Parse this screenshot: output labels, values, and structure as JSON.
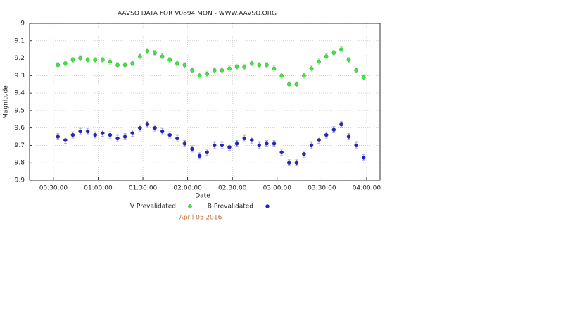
{
  "chart_data": {
    "type": "scatter",
    "title": "AAVSO DATA FOR V0894 MON - WWW.AAVSO.ORG",
    "subtitle": "April 05 2016",
    "x_label": "Date",
    "y_label": "Magnitude",
    "x": [
      33,
      38,
      43,
      48,
      53,
      58,
      63,
      68,
      73,
      78,
      83,
      88,
      93,
      98,
      103,
      108,
      113,
      118,
      123,
      128,
      133,
      138,
      143,
      148,
      153,
      158,
      163,
      168,
      173,
      178,
      183,
      188,
      193,
      198,
      203,
      208,
      213,
      218,
      223,
      228,
      233,
      238
    ],
    "series": [
      {
        "name": "V Prevalidated",
        "color": "#33ee33",
        "error": 0.015,
        "values": [
          9.24,
          9.23,
          9.21,
          9.2,
          9.21,
          9.21,
          9.21,
          9.22,
          9.24,
          9.24,
          9.23,
          9.19,
          9.16,
          9.17,
          9.19,
          9.21,
          9.23,
          9.24,
          9.27,
          9.3,
          9.29,
          9.27,
          9.27,
          9.26,
          9.25,
          9.25,
          9.23,
          9.24,
          9.24,
          9.26,
          9.3,
          9.35,
          9.35,
          9.3,
          9.26,
          9.22,
          9.19,
          9.17,
          9.15,
          9.21,
          9.27,
          9.31
        ]
      },
      {
        "name": "B Prevalidated",
        "color": "#2222cc",
        "error": 0.018,
        "values": [
          9.65,
          9.67,
          9.64,
          9.62,
          9.62,
          9.64,
          9.63,
          9.64,
          9.66,
          9.65,
          9.63,
          9.6,
          9.58,
          9.6,
          9.62,
          9.64,
          9.66,
          9.69,
          9.72,
          9.76,
          9.74,
          9.7,
          9.7,
          9.71,
          9.69,
          9.66,
          9.67,
          9.7,
          9.69,
          9.69,
          9.74,
          9.8,
          9.8,
          9.75,
          9.7,
          9.67,
          9.64,
          9.61,
          9.58,
          9.65,
          9.7,
          9.77
        ]
      }
    ],
    "xlim": [
      14,
      249
    ],
    "xticks": [
      {
        "value": 30,
        "label": "00:30:00"
      },
      {
        "value": 60,
        "label": "01:00:00"
      },
      {
        "value": 90,
        "label": "01:30:00"
      },
      {
        "value": 120,
        "label": "02:00:00"
      },
      {
        "value": 150,
        "label": "02:30:00"
      },
      {
        "value": 180,
        "label": "03:00:00"
      },
      {
        "value": 210,
        "label": "03:30:00"
      },
      {
        "value": 240,
        "label": "04:00:00"
      }
    ],
    "ylim": [
      9,
      9.9
    ],
    "yticks": [
      9,
      9.1,
      9.2,
      9.3,
      9.4,
      9.5,
      9.6,
      9.7,
      9.8,
      9.9
    ],
    "y_inverted": true,
    "grid": true
  }
}
